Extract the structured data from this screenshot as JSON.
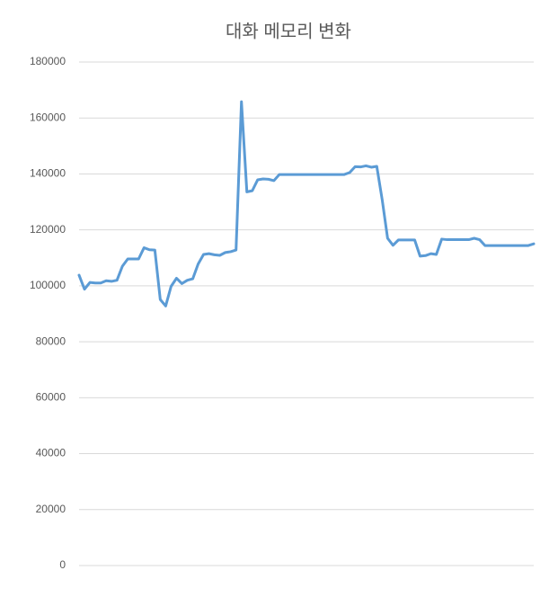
{
  "chart_data": {
    "type": "line",
    "title": "대화 메모리 변화",
    "categories": [
      null,
      null,
      null,
      null,
      null,
      null,
      null,
      null,
      null,
      null,
      null,
      null,
      null,
      null,
      null,
      null,
      null,
      null,
      null,
      null,
      null,
      null,
      null,
      null,
      null,
      null,
      null,
      null,
      null,
      null,
      null,
      null,
      null,
      null,
      null,
      null,
      null,
      null,
      null,
      null,
      null,
      null,
      null,
      null,
      null,
      null,
      null,
      null,
      null,
      null,
      null,
      null,
      null,
      null,
      null,
      null,
      null,
      null,
      null,
      null,
      null,
      null,
      null,
      null,
      null,
      null,
      null,
      null,
      null,
      null,
      null,
      null,
      null,
      null,
      null,
      null,
      null,
      null,
      null,
      null,
      null,
      null,
      null,
      null,
      null
    ],
    "series": [
      {
        "name": null,
        "color": "#5b9bd5",
        "values": [
          103800,
          98800,
          101200,
          101000,
          101000,
          101800,
          101600,
          102000,
          107000,
          109600,
          109600,
          109600,
          113600,
          112900,
          112800,
          95100,
          92800,
          99800,
          102700,
          100800,
          102000,
          102500,
          107800,
          111200,
          111500,
          111100,
          110900,
          111900,
          112200,
          112800,
          165800,
          133600,
          134000,
          137900,
          138200,
          138100,
          137600,
          139800,
          139800,
          139800,
          139800,
          139800,
          139800,
          139800,
          139800,
          139800,
          139800,
          139800,
          139800,
          139800,
          140500,
          142600,
          142500,
          142900,
          142400,
          142700,
          130800,
          117000,
          114500,
          116400,
          116400,
          116400,
          116400,
          110600,
          110800,
          111500,
          111200,
          116700,
          116500,
          116500,
          116500,
          116500,
          116500,
          117000,
          116500,
          114400,
          114400,
          114400,
          114400,
          114400,
          114400,
          114400,
          114400,
          114400,
          115000
        ]
      }
    ],
    "ylim": [
      0,
      180000
    ],
    "yticks": [
      0,
      20000,
      40000,
      60000,
      80000,
      100000,
      120000,
      140000,
      160000,
      180000
    ],
    "grid": true
  }
}
